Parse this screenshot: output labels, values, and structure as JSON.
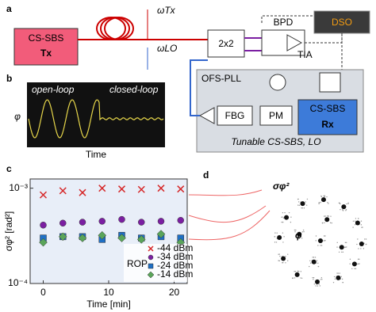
{
  "panel_labels": [
    "a",
    "b",
    "c",
    "d"
  ],
  "diagram": {
    "tx_line1": "CS-SBS",
    "tx_line2": "Tx",
    "omega_tx": "ωTx",
    "omega_lo": "ωLO",
    "coupler": "2x2",
    "bpd": "BPD",
    "tia": "TIA",
    "dso": "DSO",
    "pll": "OFS-PLL",
    "fbg": "FBG",
    "pm": "PM",
    "rx_line1": "CS-SBS",
    "rx_line2": "Rx",
    "lo_caption": "Tunable CS-SBS, LO"
  },
  "scope": {
    "open_loop": "open-loop",
    "closed_loop": "closed-loop",
    "y_label": "φ",
    "x_label": "Time"
  },
  "constellation": {
    "variance_label": "σφ²",
    "phase_label": "φ"
  },
  "chart_data": {
    "type": "scatter",
    "x_label": "Time [min]",
    "y_label": "σφ² [rad²]",
    "log_y": true,
    "xlim": [
      -2,
      22
    ],
    "xticks": [
      0,
      10,
      20
    ],
    "ylim": [
      0.0001,
      0.00125
    ],
    "yticks": [
      {
        "value": 0.001,
        "label": "10⁻³"
      },
      {
        "value": 0.0001,
        "label": "10⁻⁴"
      }
    ],
    "legend_title": "ROP",
    "legend_position": "lower right",
    "x": [
      0,
      3,
      6,
      9,
      12,
      15,
      18,
      21
    ],
    "series": [
      {
        "name": "-44 dBm",
        "color": "#d62728",
        "marker": "x",
        "values": [
          0.00085,
          0.00094,
          0.0009,
          0.001,
          0.00098,
          0.00097,
          0.001,
          0.00098
        ]
      },
      {
        "name": "-34 dBm",
        "color": "#7b1fa2",
        "marker": "o",
        "values": [
          0.00041,
          0.00043,
          0.00044,
          0.00045,
          0.00047,
          0.00044,
          0.00045,
          0.00046
        ]
      },
      {
        "name": "-24 dBm",
        "color": "#1f6fc4",
        "marker": "s",
        "values": [
          0.0003,
          0.00031,
          0.00031,
          0.00029,
          0.00032,
          0.0003,
          0.00031,
          0.0003
        ]
      },
      {
        "name": "-14 dBm",
        "color": "#5aa55a",
        "marker": "D",
        "values": [
          0.00027,
          0.00031,
          0.0003,
          0.00032,
          0.0003,
          0.00029,
          0.00033,
          0.00027
        ]
      }
    ]
  }
}
